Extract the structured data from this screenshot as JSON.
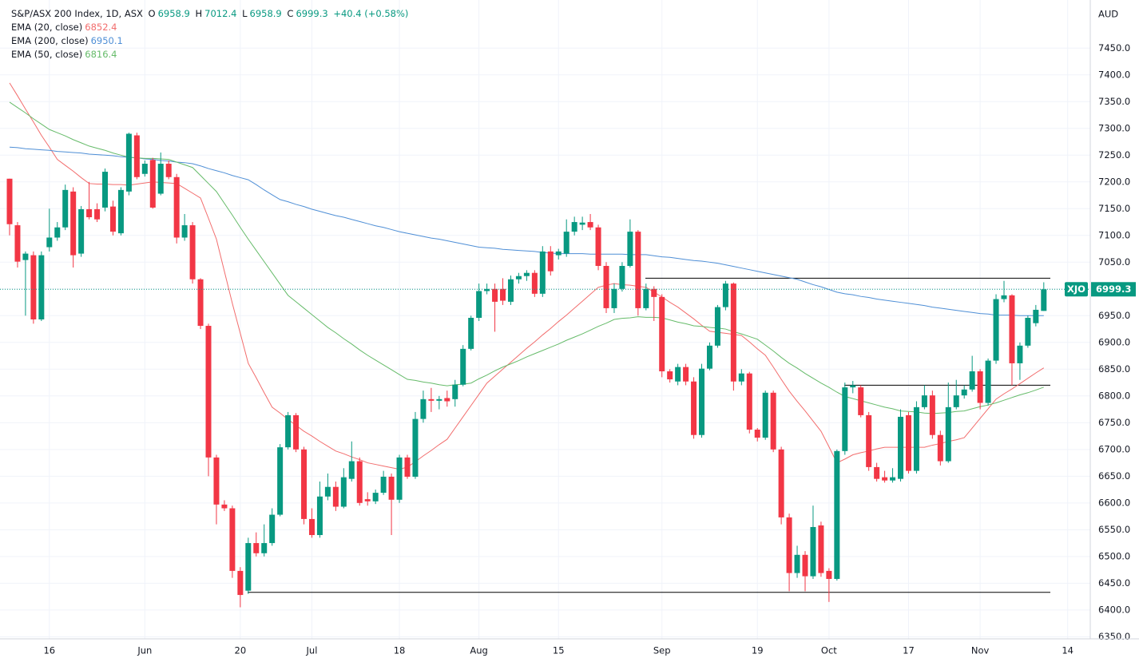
{
  "chart_data": {
    "type": "candlestick",
    "title": "S&P/ASX 200 Index, 1D, ASX",
    "ohlc_letters": [
      "O",
      "H",
      "L",
      "C"
    ],
    "change_label": "+40.4 (+0.58%)",
    "currency": "AUD",
    "symbol_tag": "XJO",
    "up_color": "#089981",
    "down_color": "#f23645",
    "grid": true,
    "categories": [
      null,
      null,
      null,
      null,
      null,
      "16",
      null,
      null,
      null,
      null,
      null,
      null,
      null,
      null,
      null,
      null,
      null,
      "Jun",
      null,
      null,
      null,
      null,
      null,
      null,
      null,
      null,
      null,
      null,
      null,
      "20",
      null,
      null,
      null,
      null,
      null,
      null,
      null,
      null,
      "Jul",
      null,
      null,
      null,
      null,
      null,
      null,
      null,
      null,
      null,
      null,
      "18",
      null,
      null,
      null,
      null,
      null,
      null,
      null,
      null,
      null,
      "Aug",
      null,
      null,
      null,
      null,
      null,
      null,
      null,
      null,
      null,
      "15",
      null,
      null,
      null,
      null,
      null,
      null,
      null,
      null,
      null,
      null,
      null,
      null,
      "Sep",
      null,
      null,
      null,
      null,
      null,
      null,
      null,
      null,
      null,
      null,
      null,
      "19",
      null,
      null,
      null,
      null,
      null,
      null,
      null,
      null,
      "Oct",
      null,
      null,
      null,
      null,
      null,
      null,
      null,
      null,
      null,
      "17",
      null,
      null,
      null,
      null,
      null,
      null,
      null,
      null,
      "Nov",
      null,
      null,
      null,
      null,
      null,
      null,
      null,
      null,
      null,
      null,
      "14"
    ],
    "open": [
      7206,
      7119,
      7054,
      7063,
      6943,
      7078,
      7096,
      7115,
      7182,
      7066,
      7149,
      7149,
      7152,
      7154,
      7104,
      7182,
      7287,
      7215,
      7241,
      7178,
      7234,
      7209,
      7096,
      7119,
      7018,
      6931,
      6685,
      6597,
      6590,
      6473,
      6436,
      6525,
      6506,
      6525,
      6578,
      6704,
      6764,
      6700,
      6570,
      6540,
      6612,
      6630,
      6593,
      6645,
      6678,
      6607,
      6603,
      6619,
      6649,
      6606,
      6685,
      6649,
      6757,
      6794,
      6791,
      6796,
      6794,
      6821,
      6888,
      6946,
      6996,
      7000,
      7000,
      6976,
      7018,
      7024,
      7030,
      6991,
      7070,
      7063,
      7066,
      7107,
      7120,
      7125,
      7115,
      7043,
      6964,
      7000,
      7043,
      7107,
      6964,
      7000,
      6985,
      6846,
      6827,
      6854,
      6827,
      6727,
      6851,
      6894,
      6966,
      7010,
      6827,
      6842,
      6737,
      6722,
      6806,
      6700,
      6573,
      6469,
      6503,
      6463,
      6558,
      6473,
      6458,
      6697,
      6816,
      6816,
      6764,
      6667,
      6648,
      6642,
      6645,
      6764,
      6660,
      6779,
      6801,
      6727,
      6678,
      6779,
      6801,
      6812,
      6846,
      6787,
      6866,
      6981,
      6988,
      6861,
      6894,
      6936,
      6958.9,
      null,
      null,
      null
    ],
    "high": [
      7206,
      7125,
      7070,
      7070,
      7070,
      7150,
      7125,
      7195,
      7190,
      7155,
      7200,
      7160,
      7225,
      7165,
      7190,
      7292,
      7292,
      7240,
      7245,
      7255,
      7240,
      7215,
      7140,
      7125,
      7020,
      6935,
      6690,
      6605,
      6595,
      6480,
      6535,
      6545,
      6560,
      6590,
      6710,
      6770,
      6768,
      6705,
      6590,
      6640,
      6655,
      6640,
      6665,
      6715,
      6685,
      6620,
      6625,
      6660,
      6655,
      6690,
      6690,
      6770,
      6810,
      6815,
      6800,
      6810,
      6830,
      6895,
      6950,
      7010,
      7010,
      7010,
      7020,
      7025,
      7030,
      7035,
      7035,
      7080,
      7080,
      7075,
      7130,
      7135,
      7135,
      7140,
      7120,
      7050,
      7010,
      7050,
      7130,
      7110,
      7010,
      7005,
      6990,
      6850,
      6860,
      6860,
      6835,
      6860,
      6900,
      6970,
      7015,
      7012,
      6850,
      6845,
      6740,
      6810,
      6810,
      6705,
      6580,
      6520,
      6510,
      6595,
      6565,
      6478,
      6700,
      6825,
      6828,
      6820,
      6770,
      6675,
      6660,
      6665,
      6775,
      6770,
      6790,
      6820,
      6810,
      6735,
      6825,
      6830,
      6820,
      6875,
      6850,
      6870,
      6990,
      7015,
      6990,
      6900,
      6950,
      6970,
      7012.4,
      null,
      null,
      null
    ],
    "low": [
      7100,
      7040,
      6950,
      6935,
      6940,
      7070,
      7090,
      7110,
      7040,
      7060,
      7130,
      7125,
      7145,
      7100,
      7100,
      7175,
      7205,
      7210,
      7150,
      7175,
      7205,
      7085,
      7090,
      7010,
      6925,
      6650,
      6560,
      6585,
      6460,
      6405,
      6430,
      6500,
      6500,
      6520,
      6575,
      6700,
      6695,
      6560,
      6535,
      6535,
      6605,
      6585,
      6590,
      6640,
      6595,
      6595,
      6598,
      6615,
      6540,
      6600,
      6645,
      6645,
      6750,
      6770,
      6775,
      6780,
      6780,
      6818,
      6885,
      6940,
      6990,
      6920,
      6970,
      6970,
      7010,
      7015,
      6985,
      6985,
      7025,
      7055,
      7060,
      7100,
      7110,
      7110,
      7035,
      6955,
      6955,
      6995,
      7040,
      6950,
      6960,
      6940,
      6835,
      6825,
      6820,
      6820,
      6720,
      6722,
      6848,
      6890,
      6960,
      6810,
      6820,
      6730,
      6715,
      6718,
      6695,
      6560,
      6435,
      6460,
      6435,
      6458,
      6462,
      6415,
      6455,
      6690,
      6805,
      6760,
      6660,
      6640,
      6638,
      6638,
      6640,
      6655,
      6655,
      6775,
      6720,
      6670,
      6675,
      6775,
      6795,
      6808,
      6775,
      6782,
      6860,
      6975,
      6820,
      6830,
      6890,
      6930,
      6958.9,
      null,
      null,
      null
    ],
    "close": [
      7121,
      7051,
      7066,
      6943,
      7063,
      7096,
      7115,
      7185,
      7063,
      7149,
      7134,
      7130,
      7219,
      7107,
      7185,
      7290,
      7209,
      7234,
      7152,
      7234,
      7209,
      7096,
      7119,
      7018,
      6931,
      6685,
      6597,
      6590,
      6473,
      6428,
      6525,
      6506,
      6525,
      6578,
      6704,
      6764,
      6700,
      6570,
      6540,
      6612,
      6630,
      6593,
      6648,
      6678,
      6600,
      6603,
      6619,
      6649,
      6606,
      6685,
      6649,
      6757,
      6794,
      6791,
      6794,
      6790,
      6821,
      6888,
      6946,
      6996,
      7000,
      6976,
      6978,
      7018,
      7024,
      7030,
      6991,
      7070,
      7033,
      7070,
      7107,
      7125,
      7124,
      7115,
      7043,
      6964,
      7000,
      7043,
      7107,
      6964,
      7000,
      6985,
      6846,
      6831,
      6854,
      6827,
      6727,
      6851,
      6894,
      6966,
      7010,
      6827,
      6842,
      6737,
      6722,
      6806,
      6700,
      6573,
      6469,
      6503,
      6463,
      6555,
      6469,
      6458,
      6697,
      6816,
      6820,
      6764,
      6667,
      6645,
      6642,
      6648,
      6761,
      6660,
      6779,
      6801,
      6727,
      6678,
      6779,
      6801,
      6812,
      6846,
      6787,
      6866,
      6981,
      6988,
      6861,
      6894,
      6946,
      6961,
      6999.3,
      null,
      null,
      null
    ],
    "series": [
      {
        "name": "EMA (20, close)",
        "color": "#f26d6d",
        "values": [
          7385,
          7361,
          7336,
          7312,
          7287,
          7265,
          7242,
          7231,
          7220,
          7208,
          7197,
          7196,
          7196,
          7195,
          7195,
          7194,
          7196,
          7198,
          7200,
          7199,
          7198,
          7197,
          7188,
          7179,
          7170,
          7132,
          7093,
          7033,
          6973,
          6917,
          6861,
          6834,
          6806,
          6779,
          6768,
          6756,
          6745,
          6734,
          6725,
          6715,
          6706,
          6697,
          6692,
          6686,
          6681,
          6675,
          6672,
          6669,
          6666,
          6663,
          6667,
          6677,
          6688,
          6698,
          6709,
          6719,
          6740,
          6761,
          6782,
          6803,
          6824,
          6837,
          6850,
          6863,
          6876,
          6889,
          6901,
          6914,
          6926,
          6939,
          6951,
          6964,
          6977,
          6990,
          7003,
          7007,
          7010,
          7008,
          7007,
          7005,
          7003,
          6994,
          6985,
          6975,
          6966,
          6955,
          6944,
          6932,
          6921,
          6919,
          6917,
          6915,
          6913,
          6901,
          6888,
          6876,
          6854,
          6831,
          6809,
          6790,
          6772,
          6753,
          6734,
          6705,
          6675,
          6682,
          6690,
          6694,
          6697,
          6701,
          6704,
          6704,
          6704,
          6704,
          6704,
          6704,
          6708,
          6711,
          6715,
          6718,
          6722,
          6740,
          6758,
          6776,
          6794,
          6804,
          6813,
          6823,
          6833,
          6843,
          6852.4,
          null,
          null,
          null
        ]
      },
      {
        "name": "EMA (200, close)",
        "color": "#4f8fd6",
        "values": [
          7265,
          7264,
          7262,
          7261,
          7260,
          7259,
          7257,
          7256,
          7255,
          7254,
          7252,
          7251,
          7250,
          7249,
          7247,
          7246,
          7245,
          7243,
          7242,
          7240,
          7239,
          7237,
          7236,
          7234,
          7230,
          7225,
          7221,
          7217,
          7212,
          7208,
          7204,
          7195,
          7185,
          7176,
          7167,
          7163,
          7158,
          7154,
          7149,
          7145,
          7141,
          7137,
          7134,
          7130,
          7126,
          7122,
          7118,
          7115,
          7111,
          7107,
          7104,
          7101,
          7098,
          7095,
          7093,
          7090,
          7087,
          7084,
          7081,
          7078,
          7077,
          7076,
          7074,
          7073,
          7072,
          7071,
          7070,
          7068,
          7067,
          7066,
          7066,
          7066,
          7066,
          7065,
          7065,
          7065,
          7065,
          7065,
          7064,
          7064,
          7064,
          7062,
          7060,
          7059,
          7057,
          7055,
          7053,
          7052,
          7050,
          7048,
          7045,
          7042,
          7039,
          7036,
          7033,
          7030,
          7027,
          7024,
          7021,
          7018,
          7013,
          7008,
          7004,
          6999,
          6994,
          6991,
          6989,
          6986,
          6984,
          6981,
          6979,
          6977,
          6975,
          6973,
          6971,
          6969,
          6966,
          6964,
          6962,
          6960,
          6958,
          6956,
          6954,
          6953,
          6951,
          6951,
          6951,
          6950,
          6950,
          6950,
          6950.1,
          null,
          null,
          null
        ]
      },
      {
        "name": "EMA (50, close)",
        "color": "#66bb6a",
        "values": [
          7349,
          7339,
          7329,
          7318,
          7308,
          7298,
          7292,
          7286,
          7279,
          7273,
          7267,
          7263,
          7259,
          7254,
          7250,
          7246,
          7245,
          7244,
          7244,
          7243,
          7242,
          7237,
          7232,
          7227,
          7212,
          7197,
          7182,
          7160,
          7138,
          7115,
          7093,
          7072,
          7051,
          7030,
          7009,
          6988,
          6976,
          6964,
          6952,
          6940,
          6928,
          6918,
          6907,
          6897,
          6886,
          6876,
          6867,
          6858,
          6849,
          6840,
          6831,
          6829,
          6826,
          6824,
          6821,
          6819,
          6821,
          6822,
          6824,
          6832,
          6839,
          6847,
          6854,
          6860,
          6866,
          6873,
          6879,
          6885,
          6891,
          6897,
          6904,
          6910,
          6916,
          6923,
          6930,
          6936,
          6943,
          6945,
          6946,
          6948,
          6947,
          6947,
          6946,
          6942,
          6938,
          6935,
          6931,
          6930,
          6928,
          6927,
          6925,
          6920,
          6916,
          6911,
          6906,
          6895,
          6884,
          6872,
          6861,
          6852,
          6842,
          6833,
          6824,
          6816,
          6807,
          6799,
          6795,
          6791,
          6787,
          6783,
          6779,
          6776,
          6772,
          6771,
          6770,
          6768,
          6767,
          6768,
          6769,
          6771,
          6772,
          6776,
          6780,
          6783,
          6787,
          6792,
          6797,
          6802,
          6806,
          6811,
          6816.4,
          null,
          null,
          null
        ]
      }
    ],
    "levels": [
      7020,
      6820,
      6433
    ],
    "ylim": [
      6346,
      7540
    ],
    "yticks": [
      {
        "value": 6350,
        "label": "6350.0"
      },
      {
        "value": 6400,
        "label": "6400.0"
      },
      {
        "value": 6450,
        "label": "6450.0"
      },
      {
        "value": 6500,
        "label": "6500.0"
      },
      {
        "value": 6550,
        "label": "6550.0"
      },
      {
        "value": 6600,
        "label": "6600.0"
      },
      {
        "value": 6650,
        "label": "6650.0"
      },
      {
        "value": 6700,
        "label": "6700.0"
      },
      {
        "value": 6750,
        "label": "6750.0"
      },
      {
        "value": 6800,
        "label": "6800.0"
      },
      {
        "value": 6850,
        "label": "6850.0"
      },
      {
        "value": 6900,
        "label": "6900.0"
      },
      {
        "value": 6950,
        "label": "6950.0"
      },
      {
        "value": 7000,
        "label": "7000.0"
      },
      {
        "value": 7050,
        "label": "7050.0"
      },
      {
        "value": 7100,
        "label": "7100.0"
      },
      {
        "value": 7150,
        "label": "7150.0"
      },
      {
        "value": 7200,
        "label": "7200.0"
      },
      {
        "value": 7250,
        "label": "7250.0"
      },
      {
        "value": 7300,
        "label": "7300.0"
      },
      {
        "value": 7350,
        "label": "7350.0"
      },
      {
        "value": 7400,
        "label": "7400.0"
      },
      {
        "value": 7450,
        "label": "7450.0"
      }
    ]
  }
}
